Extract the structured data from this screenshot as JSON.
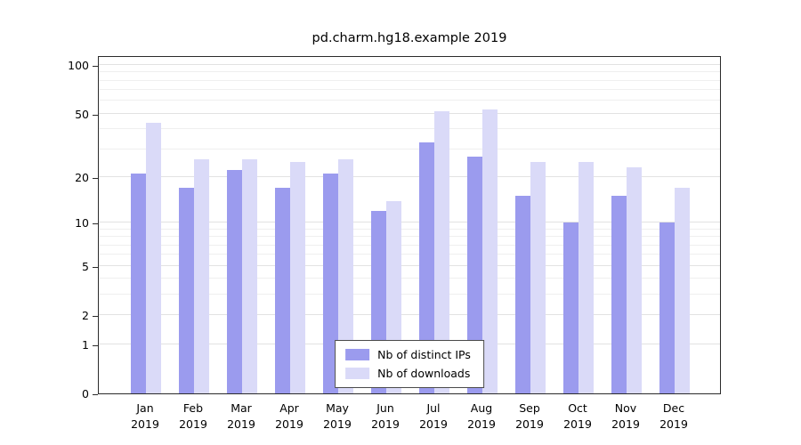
{
  "title": "pd.charm.hg18.example 2019",
  "colors": {
    "distinct_ips": "#9b9bee",
    "downloads": "#dadaf8",
    "gridline_major": "#e2e2e2",
    "gridline_minor": "#efefef",
    "axis": "#2b2b2b",
    "background": "#ffffff"
  },
  "legend": {
    "items": [
      {
        "label": "Nb of distinct IPs",
        "color_key": "distinct_ips"
      },
      {
        "label": "Nb of downloads",
        "color_key": "downloads"
      }
    ]
  },
  "y_axis": {
    "major_ticks": [
      0,
      1,
      2,
      5,
      10,
      20,
      50,
      100
    ],
    "minor_gridlines": [
      3,
      4,
      6,
      7,
      8,
      9,
      30,
      40,
      60,
      70,
      80,
      90
    ]
  },
  "chart_data": {
    "type": "bar",
    "title": "pd.charm.hg18.example 2019",
    "categories": [
      "Jan 2019",
      "Feb 2019",
      "Mar 2019",
      "Apr 2019",
      "May 2019",
      "Jun 2019",
      "Jul 2019",
      "Aug 2019",
      "Sep 2019",
      "Oct 2019",
      "Nov 2019",
      "Dec 2019"
    ],
    "series": [
      {
        "name": "Nb of distinct IPs",
        "color": "#9b9bee",
        "values": [
          21,
          17,
          22,
          17,
          21,
          12,
          33,
          27,
          15,
          10,
          15,
          10
        ]
      },
      {
        "name": "Nb of downloads",
        "color": "#dadaf8",
        "values": [
          44,
          26,
          26,
          25,
          26,
          14,
          52,
          53,
          25,
          25,
          23,
          17
        ]
      }
    ],
    "xlabel": "",
    "ylabel": "",
    "ylim": [
      0,
      100
    ],
    "yticks": [
      0,
      1,
      2,
      5,
      10,
      20,
      50,
      100
    ],
    "scale": "log-like, position = log10(value+1)",
    "grid": true,
    "legend_position": "inside bottom center"
  }
}
